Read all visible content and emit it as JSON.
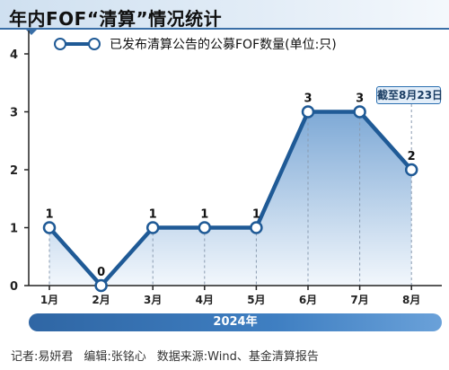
{
  "header": {
    "title": "年内FOF“清算”情况统计"
  },
  "legend": {
    "label": "已发布清算公告的公募FOF数量(单位:只)"
  },
  "annotation": {
    "cutoff": "截至8月23日"
  },
  "year_band": {
    "label": "2024年"
  },
  "footer": {
    "reporter": "记者:易妍君",
    "editor": "编辑:张铭心",
    "source": "数据来源:Wind、基金清算报告"
  },
  "colors": {
    "line": "#1f5a96",
    "area_top": "#7ea9d6",
    "area_bottom": "#f2f7fc",
    "axis": "#222222"
  },
  "chart_data": {
    "type": "line",
    "title": "年内FOF“清算”情况统计",
    "categories": [
      "1月",
      "2月",
      "3月",
      "4月",
      "5月",
      "6月",
      "7月",
      "8月"
    ],
    "series": [
      {
        "name": "已发布清算公告的公募FOF数量(单位:只)",
        "values": [
          1,
          0,
          1,
          1,
          1,
          3,
          3,
          2
        ]
      }
    ],
    "yticks": [
      "0",
      "1",
      "2",
      "3",
      "4"
    ],
    "ylim": [
      0,
      4
    ],
    "xlabel": "2024年",
    "ylabel": "",
    "legend_position": "top",
    "area_fill": true,
    "grid": false
  }
}
